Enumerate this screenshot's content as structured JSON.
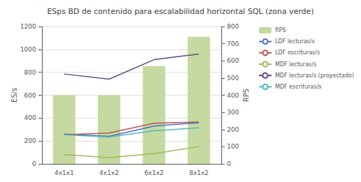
{
  "chart_data": {
    "type": "bar",
    "title": "ESps BD de contenido para escalabilidad horizontal SQL (zona verde)",
    "categories": [
      "4x1x1",
      "4x1x2",
      "6x1x2",
      "8x1x2"
    ],
    "series": [
      {
        "name": "RPS",
        "type": "bar",
        "axis": "y2",
        "color": "#c5d9a0",
        "values": [
          400,
          400,
          570,
          740
        ]
      },
      {
        "name": "LDF lecturas/s",
        "type": "line",
        "color": "#4472c4",
        "values": [
          260,
          240,
          330,
          360
        ]
      },
      {
        "name": "LDF escrituras/s",
        "type": "line",
        "color": "#c0504d",
        "values": [
          255,
          270,
          355,
          365
        ]
      },
      {
        "name": "MDF lecturas/s",
        "type": "line",
        "color": "#9bbb59",
        "values": [
          80,
          55,
          90,
          150
        ]
      },
      {
        "name": "MDF lecturas/s (proyectado)",
        "type": "line",
        "color": "#604a7b",
        "values": [
          785,
          740,
          910,
          960
        ]
      },
      {
        "name": "MDF escrituras/s",
        "type": "line",
        "color": "#4fb8c4",
        "values": [
          255,
          235,
          290,
          315
        ]
      }
    ],
    "ylabel": "ES/s",
    "y2label": "RPS",
    "ylim": [
      0,
      1200
    ],
    "yticks": [
      0,
      200,
      400,
      600,
      800,
      1000,
      1200
    ],
    "y2lim": [
      0,
      800
    ],
    "y2ticks": [
      0,
      100,
      200,
      300,
      400,
      500,
      600,
      700,
      800
    ],
    "grid": true,
    "legend": "right"
  }
}
